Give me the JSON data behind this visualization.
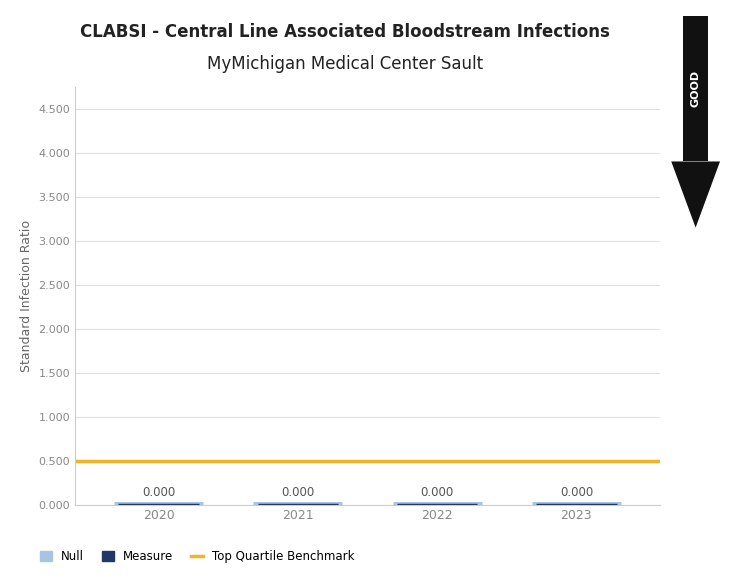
{
  "title_line1": "CLABSI - Central Line Associated Bloodstream Infections",
  "title_line2": "MyMichigan Medical Center Sault",
  "years": [
    2020,
    2021,
    2022,
    2023
  ],
  "measure_values": [
    0.0,
    0.0,
    0.0,
    0.0
  ],
  "benchmark_value": 0.5,
  "ylim": [
    0.0,
    4.75
  ],
  "yticks": [
    0.0,
    0.5,
    1.0,
    1.5,
    2.0,
    2.5,
    3.0,
    3.5,
    4.0,
    4.5
  ],
  "ylabel": "Standard Infection Ratio",
  "null_color": "#a8c4e0",
  "measure_color": "#1f3864",
  "benchmark_color": "#f0b429",
  "background_color": "#ffffff",
  "plot_bg_color": "#ffffff",
  "title_fontsize": 12,
  "axis_label_fontsize": 9,
  "tick_fontsize": 9,
  "good_arrow_color": "#111111",
  "segment_half": 0.32
}
